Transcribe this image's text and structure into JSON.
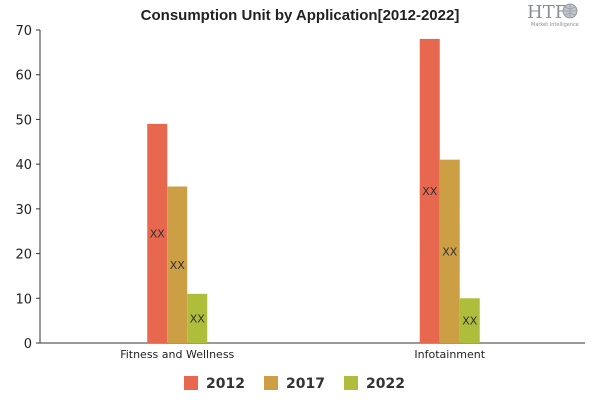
{
  "chart_data": {
    "type": "bar",
    "title": "Consumption Unit by  Application[2012-2022]",
    "categories": [
      "Fitness and Wellness",
      "Infotainment"
    ],
    "series": [
      {
        "name": "2012",
        "values": [
          49,
          68
        ],
        "color": "#e8674f"
      },
      {
        "name": "2017",
        "values": [
          35,
          41
        ],
        "color": "#cc9f45"
      },
      {
        "name": "2022",
        "values": [
          11,
          10
        ],
        "color": "#aebe3a"
      }
    ],
    "data_label": "XX",
    "ylim": [
      0,
      70
    ],
    "yticks": [
      0,
      10,
      20,
      30,
      40,
      50,
      60,
      70
    ],
    "xlabel": "",
    "ylabel": "",
    "grid": false,
    "legend": "bottom"
  },
  "logo": {
    "mark": "HTF",
    "subtitle": "Market Intelligence"
  }
}
